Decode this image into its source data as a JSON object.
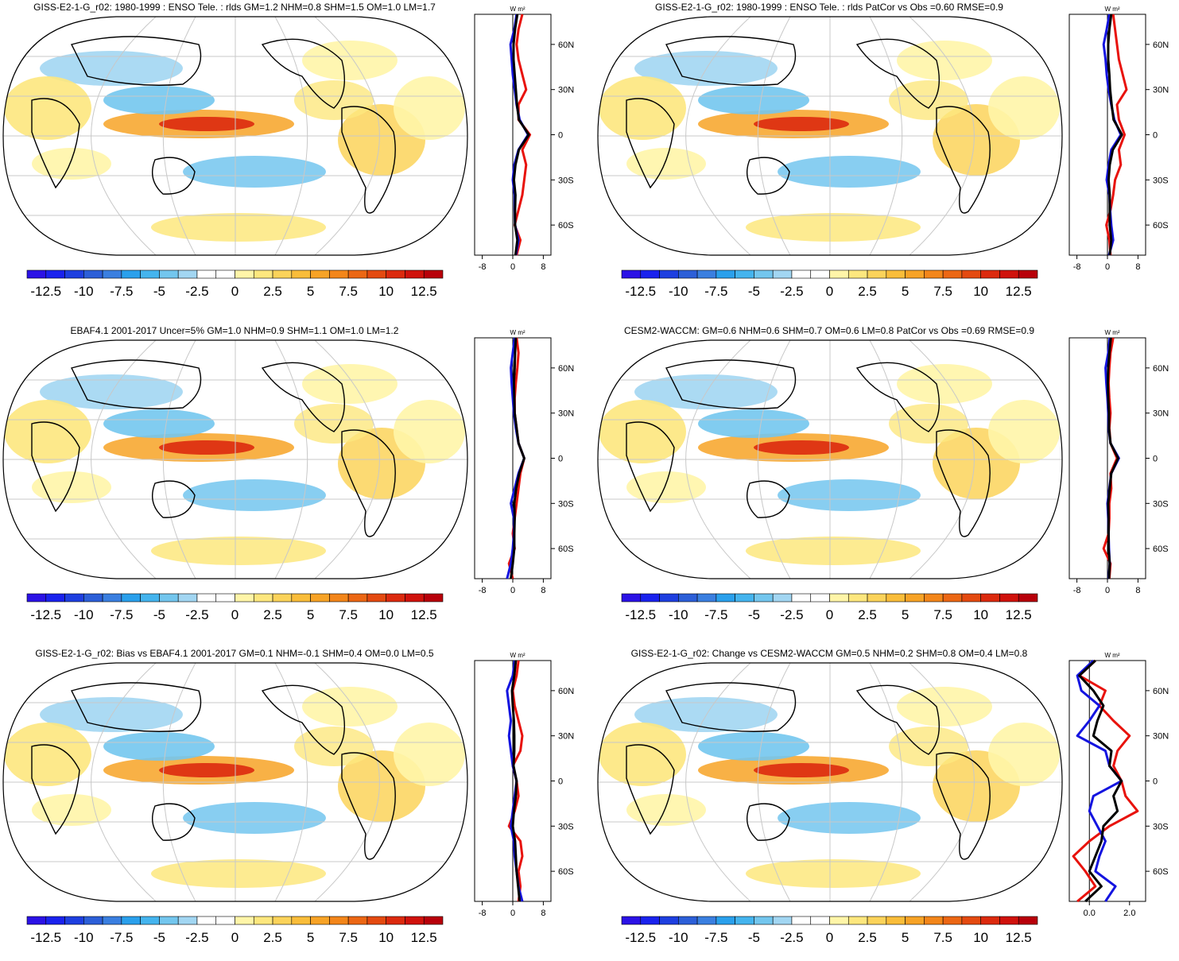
{
  "colorbar": {
    "labels": [
      "-12.5",
      "-10",
      "-7.5",
      "-5",
      "-2.5",
      "0",
      "2.5",
      "5",
      "7.5",
      "10",
      "12.5"
    ],
    "colors": [
      "#2b12e6",
      "#1a22ee",
      "#1e3fe0",
      "#2c5fd8",
      "#3a7fe0",
      "#2aa0ec",
      "#44b4ee",
      "#73c6ee",
      "#a2d6f2",
      "#ffffff",
      "#ffffff",
      "#fff5a8",
      "#fde77e",
      "#fbd35a",
      "#f9bd3a",
      "#f7a326",
      "#f3861a",
      "#ec6714",
      "#e44a10",
      "#dc2a0e",
      "#d0120c",
      "#b8000a"
    ]
  },
  "profile_units": "W m²",
  "lat_labels": [
    "60N",
    "30N",
    "0",
    "30S",
    "60S"
  ],
  "panels": [
    {
      "title": "GISS-E2-1-G_r02: 1980-1999 : ENSO Tele. : rlds GM=1.2 NHM=0.8 SHM=1.5 OM=1.0 LM=1.7",
      "xticks": [
        "-8",
        "0",
        "8"
      ],
      "chart_data": {
        "type": "line",
        "xlim": [
          -10,
          10
        ],
        "ylim": [
          -80,
          80
        ],
        "lat": [
          -80,
          -70,
          -60,
          -50,
          -40,
          -30,
          -20,
          -10,
          0,
          10,
          20,
          30,
          40,
          50,
          60,
          70,
          80
        ],
        "series": [
          {
            "color": "#e8120c",
            "values": [
              1.0,
              2.0,
              0.5,
              1.5,
              2.5,
              3.0,
              3.5,
              2.5,
              4.5,
              1.5,
              1.5,
              3.5,
              2.5,
              1.5,
              1.0,
              1.5,
              2.5
            ]
          },
          {
            "color": "#1414e0",
            "values": [
              0.8,
              1.5,
              0.6,
              0.5,
              0.5,
              0.0,
              0.4,
              1.5,
              4.0,
              1.8,
              1.0,
              0.5,
              0.0,
              -0.3,
              -0.6,
              0.4,
              1.0
            ]
          },
          {
            "color": "#000000",
            "values": [
              0.7,
              1.2,
              0.6,
              0.6,
              0.7,
              0.3,
              0.7,
              1.6,
              4.2,
              1.6,
              1.1,
              0.8,
              0.5,
              0.2,
              0.2,
              0.6,
              1.2
            ]
          }
        ]
      }
    },
    {
      "title": "GISS-E2-1-G_r02: 1980-1999 : ENSO Tele. : rlds PatCor vs Obs =0.60 RMSE=0.9",
      "xticks": [
        "-8",
        "0",
        "8"
      ],
      "chart_data": {
        "type": "line",
        "xlim": [
          -10,
          10
        ],
        "ylim": [
          -80,
          80
        ],
        "lat": [
          -80,
          -70,
          -60,
          -50,
          -40,
          -30,
          -20,
          -10,
          0,
          10,
          20,
          30,
          40,
          50,
          60,
          70,
          80
        ],
        "series": [
          {
            "color": "#e8120c",
            "values": [
              0.8,
              0.5,
              -0.3,
              0.8,
              1.5,
              2.0,
              3.5,
              3.0,
              4.5,
              3.0,
              2.5,
              5.0,
              4.0,
              3.0,
              2.5,
              2.0,
              1.5
            ]
          },
          {
            "color": "#1414e0",
            "values": [
              0.4,
              1.5,
              1.0,
              0.7,
              0.5,
              -0.2,
              0.3,
              1.0,
              3.5,
              1.8,
              1.0,
              0.3,
              -0.2,
              -0.5,
              -1.0,
              -0.2,
              0.5
            ]
          },
          {
            "color": "#000000",
            "values": [
              0.6,
              1.0,
              0.6,
              0.6,
              0.6,
              0.3,
              0.6,
              1.4,
              3.8,
              1.6,
              1.1,
              0.7,
              0.5,
              0.2,
              0.2,
              0.5,
              1.0
            ]
          }
        ]
      }
    },
    {
      "title": "EBAF4.1 2001-2017 Uncer=5% GM=1.0 NHM=0.9 SHM=1.1 OM=1.0 LM=1.2",
      "xticks": [
        "-8",
        "0",
        "8"
      ],
      "chart_data": {
        "type": "line",
        "xlim": [
          -10,
          10
        ],
        "ylim": [
          -80,
          80
        ],
        "lat": [
          -80,
          -70,
          -60,
          -50,
          -40,
          -30,
          -20,
          -10,
          0,
          10,
          20,
          30,
          40,
          50,
          60,
          70,
          80
        ],
        "series": [
          {
            "color": "#e8120c",
            "values": [
              0.0,
              -1.0,
              0.5,
              0.0,
              0.5,
              1.0,
              1.5,
              2.0,
              3.0,
              1.5,
              1.0,
              0.5,
              0.5,
              0.8,
              1.2,
              1.5,
              1.0
            ]
          },
          {
            "color": "#1414e0",
            "values": [
              -1.5,
              -0.5,
              0.0,
              0.3,
              0.3,
              -0.5,
              0.5,
              1.5,
              3.0,
              1.5,
              0.8,
              0.3,
              0.0,
              -0.3,
              -0.5,
              0.0,
              0.5
            ]
          },
          {
            "color": "#000000",
            "values": [
              -0.5,
              0.0,
              0.4,
              0.4,
              0.5,
              0.4,
              0.9,
              1.7,
              3.0,
              1.5,
              1.0,
              0.5,
              0.4,
              0.3,
              0.5,
              0.6,
              0.8
            ]
          }
        ]
      }
    },
    {
      "title": "CESM2-WACCM: GM=0.6 NHM=0.6 SHM=0.7 OM=0.6 LM=0.8 PatCor vs Obs =0.69 RMSE=0.9",
      "xticks": [
        "-8",
        "0",
        "8"
      ],
      "chart_data": {
        "type": "line",
        "xlim": [
          -10,
          10
        ],
        "ylim": [
          -80,
          80
        ],
        "lat": [
          -80,
          -70,
          -60,
          -50,
          -40,
          -30,
          -20,
          -10,
          0,
          10,
          20,
          30,
          40,
          50,
          60,
          70,
          80
        ],
        "series": [
          {
            "color": "#e8120c",
            "values": [
              0.5,
              0.8,
              -1.0,
              0.3,
              0.5,
              0.5,
              1.0,
              0.8,
              2.5,
              0.8,
              0.5,
              0.8,
              0.5,
              0.3,
              0.5,
              0.8,
              1.5
            ]
          },
          {
            "color": "#1414e0",
            "values": [
              0.3,
              0.6,
              0.4,
              0.3,
              0.2,
              0.0,
              0.5,
              1.0,
              3.0,
              0.8,
              0.3,
              0.2,
              0.0,
              -0.3,
              -0.5,
              0.2,
              0.6
            ]
          },
          {
            "color": "#000000",
            "values": [
              0.4,
              0.6,
              0.3,
              0.3,
              0.3,
              0.2,
              0.6,
              1.0,
              2.8,
              0.8,
              0.4,
              0.4,
              0.2,
              0.1,
              0.2,
              0.5,
              0.9
            ]
          }
        ]
      }
    },
    {
      "title": "GISS-E2-1-G_r02: Bias vs EBAF4.1 2001-2017 GM=0.1 NHM=-0.1 SHM=0.4 OM=0.0 LM=0.5",
      "xticks": [
        "-8",
        "0",
        "8"
      ],
      "chart_data": {
        "type": "line",
        "xlim": [
          -10,
          10
        ],
        "ylim": [
          -80,
          80
        ],
        "lat": [
          -80,
          -70,
          -60,
          -50,
          -40,
          -30,
          -20,
          -10,
          0,
          10,
          20,
          30,
          40,
          50,
          60,
          70,
          80
        ],
        "series": [
          {
            "color": "#e8120c",
            "values": [
              1.5,
              2.0,
              1.5,
              2.5,
              2.0,
              -1.0,
              0.5,
              1.5,
              1.0,
              0.0,
              2.0,
              2.5,
              1.5,
              0.5,
              0.0,
              1.0,
              1.5
            ]
          },
          {
            "color": "#1414e0",
            "values": [
              2.5,
              1.5,
              1.0,
              0.5,
              0.3,
              -0.5,
              0.0,
              0.5,
              1.0,
              0.0,
              -0.5,
              -1.0,
              -0.5,
              -1.0,
              -1.5,
              0.0,
              0.5
            ]
          },
          {
            "color": "#000000",
            "values": [
              1.8,
              1.4,
              1.0,
              0.8,
              0.6,
              0.0,
              0.3,
              0.8,
              1.0,
              0.2,
              0.4,
              0.4,
              0.3,
              0.0,
              -0.2,
              0.4,
              0.8
            ]
          }
        ]
      }
    },
    {
      "title": "GISS-E2-1-G_r02: Change vs CESM2-WACCM GM=0.5 NHM=0.2 SHM=0.8 OM=0.4 LM=0.8",
      "xticks": [
        "0.0",
        "2.0"
      ],
      "chart_data": {
        "type": "line",
        "xlim": [
          -1.0,
          2.8
        ],
        "ylim": [
          -80,
          80
        ],
        "lat": [
          -80,
          -70,
          -60,
          -50,
          -40,
          -30,
          -20,
          -10,
          0,
          10,
          20,
          30,
          40,
          50,
          60,
          70,
          80
        ],
        "series": [
          {
            "color": "#e8120c",
            "values": [
              -0.6,
              0.3,
              -0.2,
              -0.8,
              0.0,
              1.0,
              2.4,
              1.8,
              1.6,
              1.2,
              1.4,
              2.0,
              1.2,
              0.5,
              0.8,
              -0.5,
              0.3
            ]
          },
          {
            "color": "#1414e0",
            "values": [
              0.8,
              1.3,
              0.3,
              0.5,
              0.8,
              0.4,
              0.0,
              0.2,
              1.6,
              1.0,
              0.8,
              -0.6,
              0.0,
              0.5,
              -0.4,
              -0.6,
              0.2
            ]
          },
          {
            "color": "#000000",
            "values": [
              -0.2,
              0.6,
              0.0,
              0.3,
              0.6,
              0.7,
              1.4,
              1.2,
              1.6,
              1.0,
              1.1,
              0.2,
              0.4,
              0.7,
              0.2,
              -0.5,
              0.3
            ]
          }
        ]
      }
    }
  ]
}
